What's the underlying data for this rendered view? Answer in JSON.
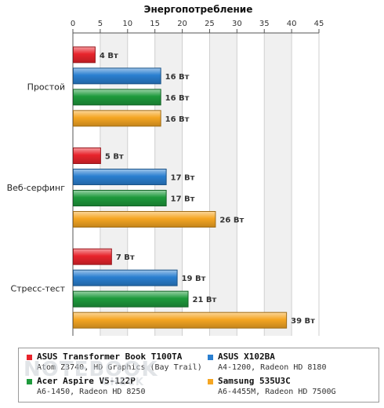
{
  "chart_data": {
    "type": "bar",
    "orientation": "horizontal",
    "title": "Энергопотребление",
    "xlim": [
      0,
      45
    ],
    "x_ticks": [
      "0",
      "5",
      "10",
      "15",
      "20",
      "25",
      "30",
      "35",
      "40",
      "45"
    ],
    "grid": "alternating vertical bands",
    "categories": [
      "Простой",
      "Веб-серфинг",
      "Стресс-тест"
    ],
    "unit": "Вт",
    "series": [
      {
        "name": "ASUS Transformer Book T100TA",
        "color": "#e8242c",
        "values": [
          4,
          5,
          7
        ],
        "labels": [
          "4 Вт",
          "5 Вт",
          "7 Вт"
        ]
      },
      {
        "name": "ASUS X102BA",
        "color": "#2a7fd0",
        "values": [
          16,
          17,
          19
        ],
        "labels": [
          "16 Вт",
          "17 Вт",
          "19 Вт"
        ]
      },
      {
        "name": "Acer Aspire V5-122P",
        "color": "#1e9a3c",
        "values": [
          16,
          17,
          21
        ],
        "labels": [
          "16 Вт",
          "17 Вт",
          "21 Вт"
        ]
      },
      {
        "name": "Samsung 535U3C",
        "color": "#f5a623",
        "values": [
          16,
          26,
          39
        ],
        "labels": [
          "16 Вт",
          "26 Вт",
          "39 Вт"
        ]
      }
    ]
  },
  "legend": [
    {
      "name": "ASUS Transformer Book T100TA",
      "sub": "Atom Z3740, HD Graphics (Bay Trail)",
      "color": "#e8242c"
    },
    {
      "name": "ASUS X102BA",
      "sub": "A4-1200, Radeon HD 8180",
      "color": "#2a7fd0"
    },
    {
      "name": "Acer Aspire V5-122P",
      "sub": "A6-1450, Radeon HD 8250",
      "color": "#1e9a3c"
    },
    {
      "name": "Samsung 535U3C",
      "sub": "A6-4455M, Radeon HD 7500G",
      "color": "#f5a623"
    }
  ],
  "watermark": {
    "line1": "NOTEBOOK",
    "line2": "CHECK"
  }
}
